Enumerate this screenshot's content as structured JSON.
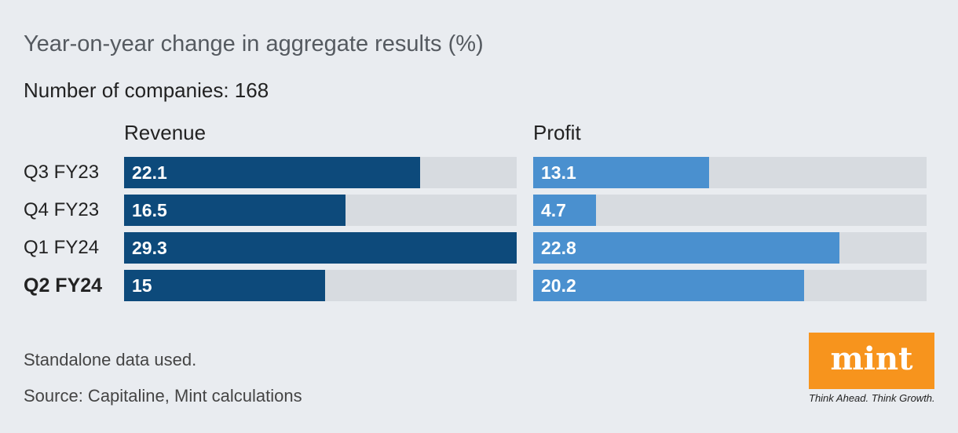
{
  "header": {
    "title": "Year-on-year change in aggregate results (%)",
    "subtitle": "Number of companies: 168"
  },
  "chart_data": {
    "type": "bar",
    "orientation": "horizontal",
    "title": "Year-on-year change in aggregate results (%)",
    "subtitle": "Number of companies: 168",
    "categories": [
      "Q3 FY23",
      "Q4 FY23",
      "Q1 FY24",
      "Q2 FY24"
    ],
    "highlight_category": "Q2 FY24",
    "series": [
      {
        "name": "Revenue",
        "values": [
          22.1,
          16.5,
          29.3,
          15
        ],
        "labels": [
          "22.1",
          "16.5",
          "29.3",
          "15"
        ],
        "color": "#0d4a7b"
      },
      {
        "name": "Profit",
        "values": [
          13.1,
          4.7,
          22.8,
          20.2
        ],
        "labels": [
          "13.1",
          "4.7",
          "22.8",
          "20.2"
        ],
        "color": "#4a90cf"
      }
    ],
    "xlim": [
      0,
      29.3
    ],
    "grid": false
  },
  "footer": {
    "note": "Standalone data used.",
    "source": "Source: Capitaline, Mint calculations"
  },
  "logo": {
    "brand": "mint",
    "tagline": "Think Ahead. Think Growth.",
    "color": "#f7941d"
  }
}
